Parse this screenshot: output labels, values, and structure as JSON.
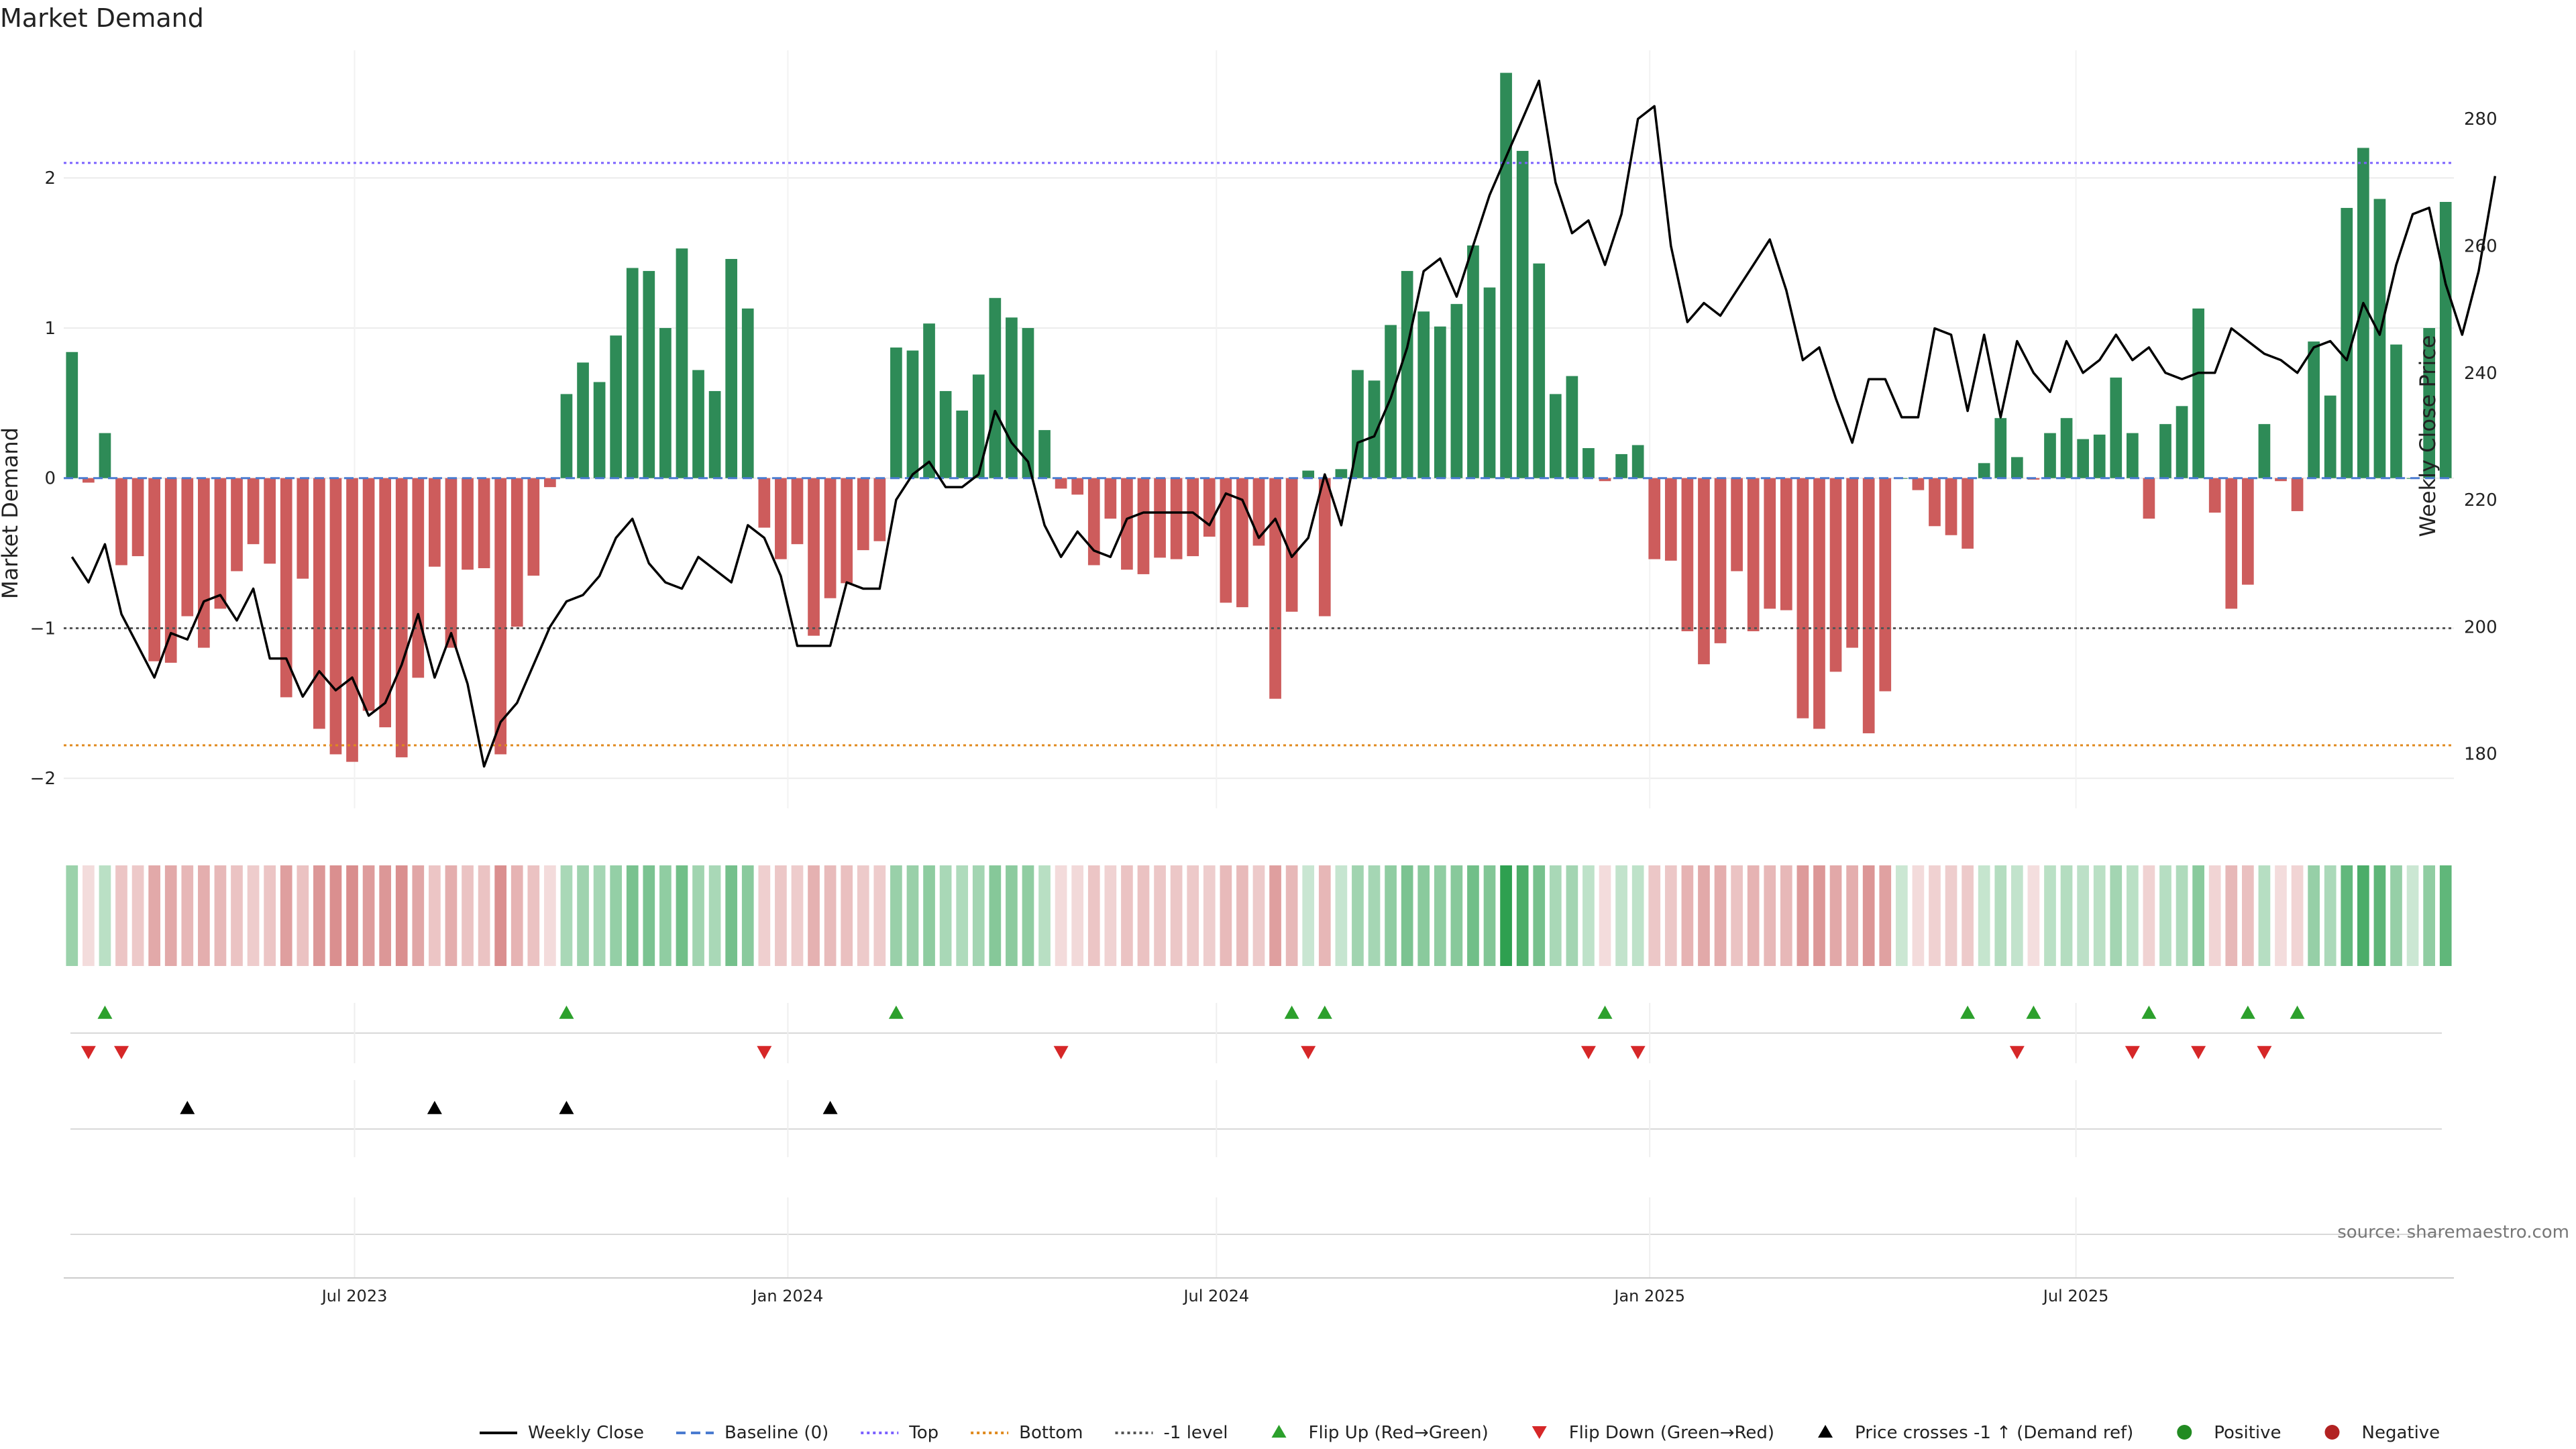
{
  "title": "Market Demand",
  "source": "source: sharemaestro.com",
  "colors": {
    "positive": "#2e8b57",
    "negative": "#cd5c5c",
    "price": "#000000",
    "baseline": "#4a7bd0",
    "top": "#7b61ff",
    "bottom": "#e08a1e",
    "minus1": "#555555",
    "flip_up": "#2ca02c",
    "flip_down": "#d62728",
    "cross": "#000000",
    "pos_dot": "#228b22",
    "neg_dot": "#b22222"
  },
  "chart_data": {
    "type": "bar",
    "ylabel": "Market Demand",
    "y2label": "Weekly Close Price",
    "ylim": [
      -2.2,
      2.85
    ],
    "y2lim": [
      171.4,
      290.8
    ],
    "yticks": [
      "2",
      "1",
      "0",
      "−1",
      "−2"
    ],
    "ytick_values": [
      2,
      1,
      0,
      -1,
      -2
    ],
    "y2ticks": [
      "280",
      "260",
      "240",
      "220",
      "200",
      "180"
    ],
    "y2tick_values": [
      280,
      260,
      240,
      220,
      200,
      180
    ],
    "x_start": "2023-03-03",
    "x_step_days": 7,
    "x_end": "2025-11-28",
    "xticks": [
      "Jul 2023",
      "Jan 2024",
      "Jul 2024",
      "Jan 2025",
      "Jul 2025"
    ],
    "xtick_dates": [
      "2023-07-01",
      "2024-01-01",
      "2024-07-01",
      "2025-01-01",
      "2025-07-01"
    ],
    "levels": {
      "top": 2.1,
      "bottom": -1.78,
      "minus1": -1.0,
      "baseline": 0
    },
    "demand": [
      0.84,
      -0.03,
      0.3,
      -0.58,
      -0.52,
      -1.22,
      -1.23,
      -0.92,
      -1.13,
      -0.87,
      -0.62,
      -0.44,
      -0.57,
      -1.46,
      -0.67,
      -1.67,
      -1.84,
      -1.89,
      -1.55,
      -1.66,
      -1.86,
      -1.33,
      -0.59,
      -1.13,
      -0.61,
      -0.6,
      -1.84,
      -0.99,
      -0.65,
      -0.06,
      0.56,
      0.77,
      0.64,
      0.95,
      1.4,
      1.38,
      1.0,
      1.53,
      0.72,
      0.58,
      1.46,
      1.13,
      -0.33,
      -0.54,
      -0.44,
      -1.05,
      -0.8,
      -0.7,
      -0.48,
      -0.42,
      0.87,
      0.85,
      1.03,
      0.58,
      0.45,
      0.69,
      1.2,
      1.07,
      1.0,
      0.32,
      -0.07,
      -0.11,
      -0.58,
      -0.27,
      -0.61,
      -0.64,
      -0.53,
      -0.54,
      -0.52,
      -0.39,
      -0.83,
      -0.86,
      -0.45,
      -1.47,
      -0.89,
      0.05,
      -0.92,
      0.06,
      0.72,
      0.65,
      1.02,
      1.38,
      1.11,
      1.01,
      1.16,
      1.55,
      1.27,
      2.7,
      2.18,
      1.43,
      0.56,
      0.68,
      0.2,
      -0.02,
      0.16,
      0.22,
      -0.54,
      -0.55,
      -1.02,
      -1.24,
      -1.1,
      -0.62,
      -1.02,
      -0.87,
      -0.88,
      -1.6,
      -1.67,
      -1.29,
      -1.13,
      -1.7,
      -1.42,
      0.0,
      -0.08,
      -0.32,
      -0.38,
      -0.47,
      0.1,
      0.4,
      0.14,
      -0.01,
      0.3,
      0.4,
      0.26,
      0.29,
      0.67,
      0.3,
      -0.27,
      0.36,
      0.48,
      1.13,
      -0.23,
      -0.87,
      -0.71,
      0.36,
      -0.02,
      -0.22,
      0.91,
      0.55,
      1.8,
      2.2,
      1.86,
      0.89,
      0.0,
      1.0,
      1.84
    ],
    "price": [
      211,
      207,
      213,
      202,
      197,
      192,
      199,
      198,
      204,
      205,
      201,
      206,
      195,
      195,
      189,
      193,
      190,
      192,
      186,
      188,
      194,
      202,
      192,
      199,
      191,
      178,
      185,
      188,
      194,
      200,
      204,
      205,
      208,
      214,
      217,
      210,
      207,
      206,
      211,
      209,
      207,
      216,
      214,
      208,
      197,
      197,
      197,
      207,
      206,
      206,
      220,
      224,
      226,
      222,
      222,
      224,
      234,
      229,
      226,
      216,
      211,
      215,
      212,
      211,
      217,
      218,
      218,
      218,
      218,
      216,
      221,
      220,
      214,
      217,
      211,
      214,
      224,
      216,
      229,
      230,
      236,
      244,
      256,
      258,
      252,
      260,
      268,
      274,
      280,
      286,
      270,
      262,
      264,
      257,
      265,
      280,
      282,
      260,
      248,
      251,
      249,
      253,
      257,
      261,
      253,
      242,
      244,
      236,
      229,
      239,
      239,
      233,
      233,
      247,
      246,
      234,
      246,
      233,
      245,
      240,
      237,
      245,
      240,
      242,
      246,
      242,
      244,
      240,
      239,
      240,
      240,
      247,
      245,
      243,
      242,
      240,
      244,
      245,
      242,
      251,
      246,
      257,
      265,
      266,
      254,
      246,
      256,
      271
    ]
  },
  "heat_strip": {
    "label": ""
  },
  "flip_up_idx": [
    2,
    30,
    50,
    74,
    76,
    93,
    115,
    119,
    126,
    132,
    135
  ],
  "flip_down_idx": [
    1,
    3,
    42,
    60,
    75,
    92,
    95,
    118,
    125,
    129,
    133
  ],
  "cross_idx": [
    7,
    22,
    30,
    46
  ],
  "legend": [
    {
      "label": "Weekly Close",
      "kind": "line",
      "color_key": "price"
    },
    {
      "label": "Baseline (0)",
      "kind": "dash",
      "color_key": "baseline"
    },
    {
      "label": "Top",
      "kind": "dot",
      "color_key": "top"
    },
    {
      "label": "Bottom",
      "kind": "dot",
      "color_key": "bottom"
    },
    {
      "label": "-1 level",
      "kind": "dot",
      "color_key": "minus1"
    },
    {
      "label": "Flip Up (Red→Green)",
      "kind": "tri-up",
      "color_key": "flip_up"
    },
    {
      "label": "Flip Down (Green→Red)",
      "kind": "tri-down",
      "color_key": "flip_down"
    },
    {
      "label": "Price crosses -1 ↑ (Demand ref)",
      "kind": "tri-up",
      "color_key": "cross"
    },
    {
      "label": "Positive",
      "kind": "circle",
      "color_key": "pos_dot"
    },
    {
      "label": "Negative",
      "kind": "circle",
      "color_key": "neg_dot"
    }
  ]
}
